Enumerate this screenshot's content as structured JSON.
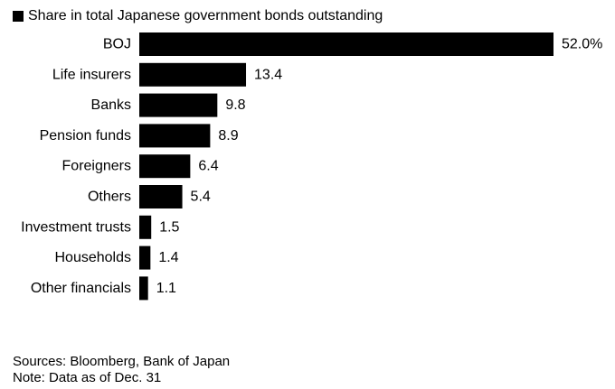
{
  "chart_data": {
    "type": "bar",
    "orientation": "horizontal",
    "legend": "Share in total Japanese government bonds outstanding",
    "legend_placement": "top-left",
    "categories": [
      "BOJ",
      "Life insurers",
      "Banks",
      "Pension funds",
      "Foreigners",
      "Others",
      "Investment trusts",
      "Households",
      "Other financials"
    ],
    "values": [
      52.0,
      13.4,
      9.8,
      8.9,
      6.4,
      5.4,
      1.5,
      1.4,
      1.1
    ],
    "value_labels": [
      "52.0%",
      "13.4",
      "9.8",
      "8.9",
      "6.4",
      "5.4",
      "1.5",
      "1.4",
      "1.1"
    ],
    "xlim": [
      0,
      52
    ],
    "grid": false,
    "bar_color": "#000000"
  },
  "footer": {
    "sources": "Sources: Bloomberg, Bank of Japan",
    "note": "Note: Data as of Dec. 31"
  }
}
